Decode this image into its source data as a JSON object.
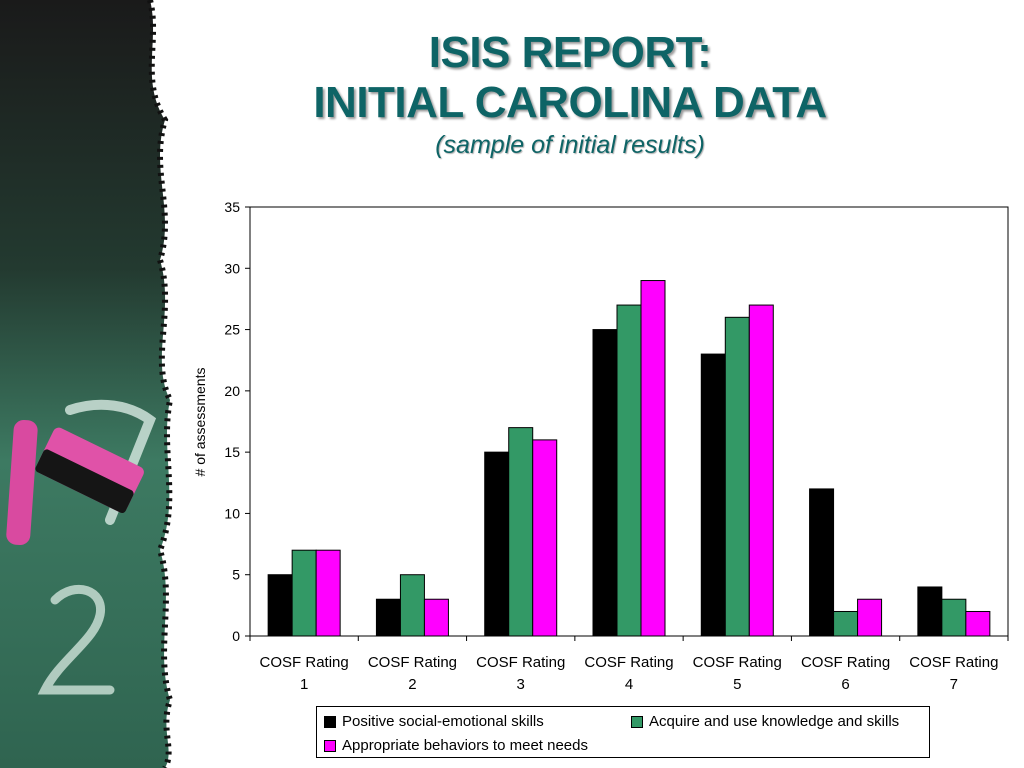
{
  "slide": {
    "title_line1": "ISIS REPORT:",
    "title_line2": "INITIAL CAROLINA DATA",
    "subtitle": "(sample of initial results)"
  },
  "chart_data": {
    "type": "bar",
    "title": "",
    "xlabel": "",
    "ylabel": "# of assessments",
    "ylim": [
      0,
      35
    ],
    "yticks": [
      0,
      5,
      10,
      15,
      20,
      25,
      30,
      35
    ],
    "grid": false,
    "legend_position": "bottom",
    "categories": [
      [
        "COSF Rating",
        "1"
      ],
      [
        "COSF Rating",
        "2"
      ],
      [
        "COSF Rating",
        "3"
      ],
      [
        "COSF Rating",
        "4"
      ],
      [
        "COSF Rating",
        "5"
      ],
      [
        "COSF Rating",
        "6"
      ],
      [
        "COSF Rating",
        "7"
      ]
    ],
    "series": [
      {
        "name": "Positive social-emotional skills",
        "color": "#000000",
        "values": [
          5,
          3,
          15,
          25,
          23,
          12,
          4
        ]
      },
      {
        "name": "Acquire and use knowledge and skills",
        "color": "#339966",
        "values": [
          7,
          5,
          17,
          27,
          26,
          2,
          3
        ]
      },
      {
        "name": "Appropriate behaviors to meet needs",
        "color": "#ff00ff",
        "values": [
          7,
          3,
          16,
          29,
          27,
          3,
          2
        ]
      }
    ]
  }
}
